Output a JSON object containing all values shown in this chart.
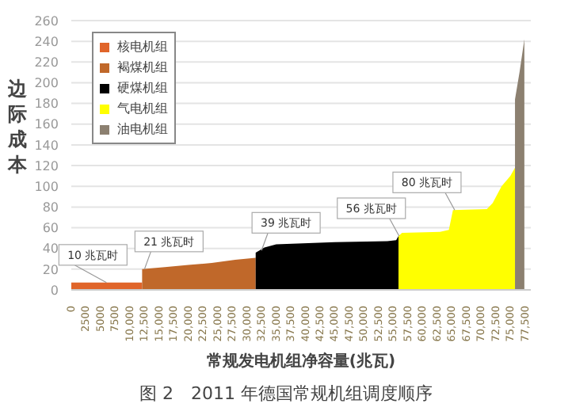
{
  "chart_data": {
    "type": "area",
    "title": "图 2　2011 年德国常规机组调度顺序",
    "xlabel": "常规发电机组净容量(兆瓦)",
    "ylabel": "边际成本",
    "xlim": [
      0,
      78500
    ],
    "xticks": [
      0,
      {
        "value": 2500,
        "label": "2500"
      },
      {
        "value": 5000,
        "label": "5000"
      },
      {
        "value": 7500,
        "label": "7500"
      },
      {
        "value": 10000,
        "label": "10,000"
      },
      {
        "value": 12500,
        "label": "12,500"
      },
      {
        "value": 15000,
        "label": "15,000"
      },
      {
        "value": 17500,
        "label": "17,500"
      },
      {
        "value": 20000,
        "label": "20,000"
      },
      {
        "value": 22500,
        "label": "22,500"
      },
      {
        "value": 25000,
        "label": "25,000"
      },
      {
        "value": 27500,
        "label": "27,500"
      },
      {
        "value": 30000,
        "label": "30,000"
      },
      {
        "value": 32500,
        "label": "32,500"
      },
      {
        "value": 35000,
        "label": "35,000"
      },
      {
        "value": 37500,
        "label": "37,500"
      },
      {
        "value": 40000,
        "label": "40,000"
      },
      {
        "value": 42500,
        "label": "42,500"
      },
      {
        "value": 45000,
        "label": "45,000"
      },
      {
        "value": 47500,
        "label": "47,500"
      },
      {
        "value": 50000,
        "label": "50,000"
      },
      {
        "value": 52500,
        "label": "52,500"
      },
      {
        "value": 55000,
        "label": "55,000"
      },
      {
        "value": 57500,
        "label": "57,500"
      },
      {
        "value": 60000,
        "label": "60,000"
      },
      {
        "value": 62500,
        "label": "62,500"
      },
      {
        "value": 65000,
        "label": "65,000"
      },
      {
        "value": 67500,
        "label": "67,500"
      },
      {
        "value": 70000,
        "label": "70,000"
      },
      {
        "value": 72500,
        "label": "72,500"
      },
      {
        "value": 75000,
        "label": "75,000"
      },
      {
        "value": 77500,
        "label": "77,500"
      }
    ],
    "ylim": [
      0,
      260
    ],
    "yticks": [
      0,
      20,
      40,
      60,
      80,
      100,
      120,
      140,
      160,
      180,
      200,
      220,
      240,
      260
    ],
    "grid": "y",
    "legend": "top left",
    "series": [
      {
        "name": "核电机组",
        "color": "#e0652a",
        "x": [
          0,
          12100
        ],
        "values": [
          7,
          7
        ]
      },
      {
        "name": "褐煤机组",
        "color": "#c0682a",
        "x": [
          12100,
          16000,
          20000,
          24000,
          28000,
          31500
        ],
        "values": [
          20,
          22,
          24,
          26,
          29,
          31
        ]
      },
      {
        "name": "硬煤机组",
        "color": "#000000",
        "x": [
          31500,
          33000,
          35000,
          45000,
          54000,
          55500,
          55900
        ],
        "values": [
          36,
          41,
          44,
          46,
          47,
          48,
          52
        ]
      },
      {
        "name": "气电机组",
        "color": "#ffff00",
        "x": [
          55900,
          56500,
          63000,
          64500,
          65200,
          71000,
          72000,
          73500,
          75000,
          75800
        ],
        "values": [
          52,
          55,
          56,
          58,
          77,
          78,
          84,
          100,
          110,
          118
        ]
      },
      {
        "name": "油电机组",
        "color": "#8c8070",
        "x": [
          75800,
          76600,
          77400
        ],
        "values": [
          184,
          211,
          242
        ]
      }
    ],
    "annotations": [
      {
        "text": "10 兆瓦时",
        "x": 6000,
        "y": 7
      },
      {
        "text": "21 兆瓦时",
        "x": 12500,
        "y": 20
      },
      {
        "text": "39 兆瓦时",
        "x": 32500,
        "y": 38
      },
      {
        "text": "56 兆瓦时",
        "x": 56000,
        "y": 52
      },
      {
        "text": "80 兆瓦时",
        "x": 65500,
        "y": 77
      }
    ]
  }
}
